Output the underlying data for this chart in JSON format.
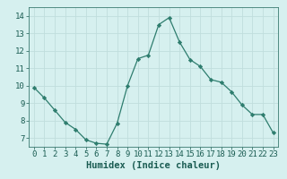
{
  "x": [
    0,
    1,
    2,
    3,
    4,
    5,
    6,
    7,
    8,
    9,
    10,
    11,
    12,
    13,
    14,
    15,
    16,
    17,
    18,
    19,
    20,
    21,
    22,
    23
  ],
  "y": [
    9.9,
    9.3,
    8.6,
    7.9,
    7.5,
    6.9,
    6.7,
    6.65,
    7.85,
    10.0,
    11.55,
    11.75,
    13.5,
    13.9,
    12.5,
    11.5,
    11.1,
    10.35,
    10.2,
    9.65,
    8.9,
    8.35,
    8.35,
    7.3
  ],
  "line_color": "#2e7d6e",
  "marker": "D",
  "marker_size": 2.2,
  "bg_color": "#d6f0ef",
  "grid_color": "#c0dedd",
  "xlabel": "Humidex (Indice chaleur)",
  "xlabel_fontsize": 7.5,
  "xlim": [
    -0.5,
    23.5
  ],
  "ylim": [
    6.5,
    14.5
  ],
  "yticks": [
    7,
    8,
    9,
    10,
    11,
    12,
    13,
    14
  ],
  "xticks": [
    0,
    1,
    2,
    3,
    4,
    5,
    6,
    7,
    8,
    9,
    10,
    11,
    12,
    13,
    14,
    15,
    16,
    17,
    18,
    19,
    20,
    21,
    22,
    23
  ],
  "tick_label_fontsize": 6.5
}
